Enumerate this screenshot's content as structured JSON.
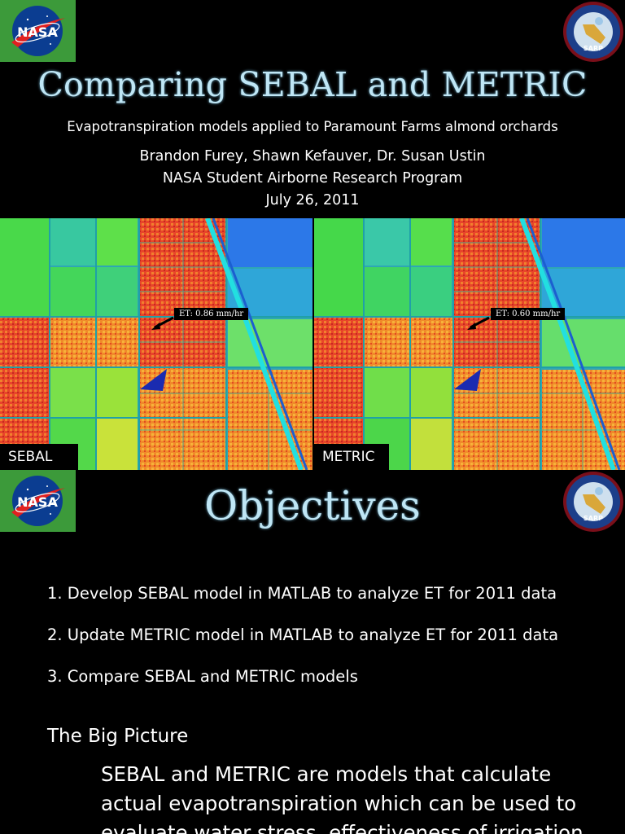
{
  "slide1": {
    "title": "Comparing SEBAL and METRIC",
    "subtitle": "Evapotranspiration models applied to Paramount Farms almond orchards",
    "authors": "Brandon Furey, Shawn Kefauver, Dr. Susan Ustin",
    "program": "NASA Student Airborne Research Program",
    "date": "July 26, 2011",
    "logo_left": "NASA",
    "logo_right": "SARP",
    "maps": [
      {
        "label": "SEBAL",
        "annotation": "ET: 0.86 mm/hr"
      },
      {
        "label": "METRIC",
        "annotation": "ET: 0.60 mm/hr"
      }
    ]
  },
  "slide2": {
    "title": "Objectives",
    "logo_left": "NASA",
    "logo_right": "SARP",
    "objectives": [
      "1. Develop SEBAL model in MATLAB to analyze ET for 2011 data",
      "2. Update METRIC model in MATLAB to analyze ET for 2011 data",
      "3. Compare SEBAL and METRIC models"
    ],
    "big_picture_heading": "The Big Picture",
    "big_picture_text": "SEBAL and METRIC are models that calculate actual evapotranspiration which can be used to evaluate water stress, effectiveness of irrigation"
  },
  "colors": {
    "title": "#bfe6f5",
    "nasa_green": "#3c9a3a",
    "nasa_blue": "#0b3d91",
    "nasa_red": "#e02020",
    "map_red": "#e8452a",
    "map_orange": "#f08a2a",
    "map_green": "#3ed23e",
    "map_cyan": "#20c8c8",
    "map_blue": "#2c78e8"
  }
}
